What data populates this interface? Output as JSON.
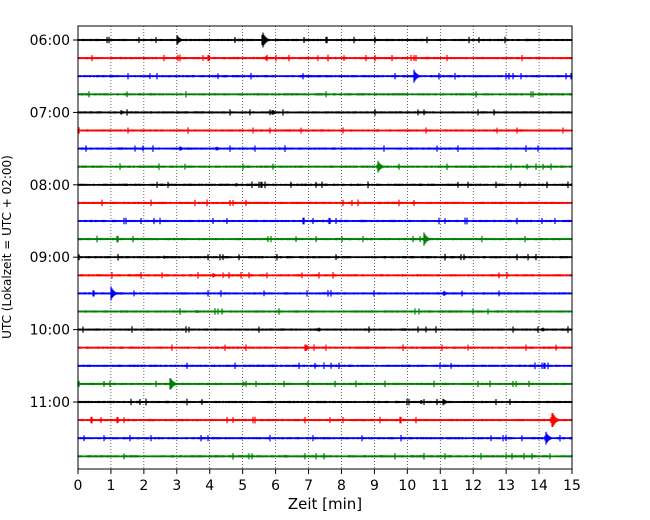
{
  "chart_data": {
    "type": "line",
    "xlabel": "Zeit  [min]",
    "ylabel": "UTC (Lokalzeit = UTC + 02:00)",
    "xlim": [
      0,
      15
    ],
    "x_ticks": [
      "0",
      "1",
      "2",
      "3",
      "4",
      "5",
      "6",
      "7",
      "8",
      "9",
      "10",
      "11",
      "12",
      "13",
      "14",
      "15"
    ],
    "y_ticks": [
      "06:00",
      "07:00",
      "08:00",
      "09:00",
      "10:00",
      "11:00"
    ],
    "grid": "x-only dotted",
    "trace_interval_min": 15,
    "first_trace": "06:00",
    "trace_count": 24,
    "colors": [
      "#000000",
      "#ff0000",
      "#0000ff",
      "#008000"
    ],
    "events": [
      {
        "trace": 0,
        "t": 3.0,
        "amp": 0.45
      },
      {
        "trace": 0,
        "t": 5.6,
        "amp": 0.75
      },
      {
        "trace": 1,
        "t": 5.7,
        "amp": 0.2
      },
      {
        "trace": 2,
        "t": 10.2,
        "amp": 0.55
      },
      {
        "trace": 4,
        "t": 1.3,
        "amp": 0.2
      },
      {
        "trace": 4,
        "t": 5.9,
        "amp": 0.25
      },
      {
        "trace": 6,
        "t": 3.1,
        "amp": 0.2
      },
      {
        "trace": 6,
        "t": 4.2,
        "amp": 0.2
      },
      {
        "trace": 7,
        "t": 9.1,
        "amp": 0.55
      },
      {
        "trace": 8,
        "t": 4.8,
        "amp": 0.15
      },
      {
        "trace": 11,
        "t": 10.5,
        "amp": 0.6
      },
      {
        "trace": 12,
        "t": 2.6,
        "amp": 0.15
      },
      {
        "trace": 13,
        "t": 4.1,
        "amp": 0.2
      },
      {
        "trace": 14,
        "t": 1.0,
        "amp": 0.6
      },
      {
        "trace": 14,
        "t": 11.1,
        "amp": 0.25
      },
      {
        "trace": 15,
        "t": 3.6,
        "amp": 0.15
      },
      {
        "trace": 16,
        "t": 7.3,
        "amp": 0.2
      },
      {
        "trace": 16,
        "t": 14.1,
        "amp": 0.2
      },
      {
        "trace": 17,
        "t": 6.9,
        "amp": 0.35
      },
      {
        "trace": 19,
        "t": 2.8,
        "amp": 0.6
      },
      {
        "trace": 19,
        "t": 5.0,
        "amp": 0.2
      },
      {
        "trace": 20,
        "t": 10.4,
        "amp": 0.2
      },
      {
        "trace": 20,
        "t": 11.1,
        "amp": 0.25
      },
      {
        "trace": 21,
        "t": 14.4,
        "amp": 0.75
      },
      {
        "trace": 22,
        "t": 14.2,
        "amp": 0.6
      },
      {
        "trace": 23,
        "t": 6.3,
        "amp": 0.15
      }
    ]
  }
}
